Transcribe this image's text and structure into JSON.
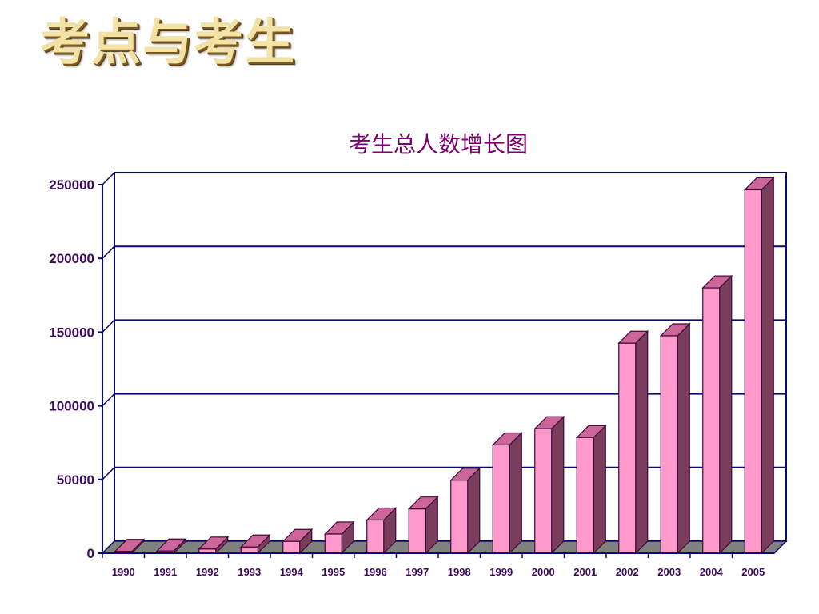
{
  "slide": {
    "title": "考点与考生"
  },
  "colors": {
    "bar_front": "#ff99cc",
    "bar_top": "#cc6699",
    "bar_side": "#7a3d5c",
    "axis": "#0a0a6a",
    "grid": "#0a0a6a",
    "floor": "#808080",
    "title": "#7a0070",
    "tick_label": "#3b0a5a"
  },
  "chart_data": {
    "type": "bar",
    "style": "3d-column",
    "title": "考生总人数增长图",
    "xlabel": "",
    "ylabel": "",
    "ylim": [
      0,
      250000
    ],
    "yticks": [
      0,
      50000,
      100000,
      150000,
      200000,
      250000
    ],
    "grid": true,
    "legend": "none",
    "categories": [
      "1990",
      "1991",
      "1992",
      "1993",
      "1994",
      "1995",
      "1996",
      "1997",
      "1998",
      "1999",
      "2000",
      "2001",
      "2002",
      "2003",
      "2004",
      "2005"
    ],
    "values": [
      1200,
      1500,
      2800,
      4200,
      8000,
      13000,
      22500,
      30000,
      49500,
      73500,
      84500,
      78500,
      142500,
      147500,
      180000,
      246500
    ]
  }
}
